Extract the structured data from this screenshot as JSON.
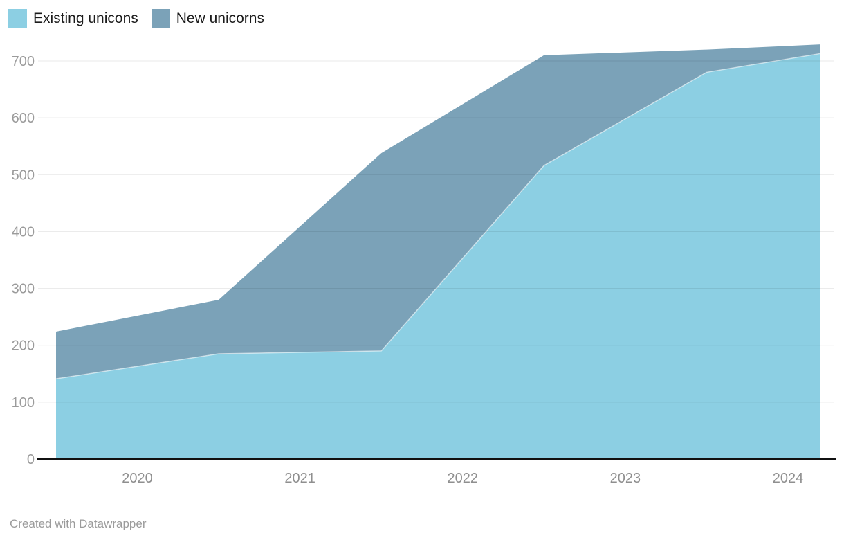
{
  "legend": {
    "items": [
      {
        "label": "Existing unicons",
        "color": "#8CCFE3"
      },
      {
        "label": "New unicorns",
        "color": "#7BA2B8"
      }
    ]
  },
  "footer": {
    "credit": "Created with Datawrapper"
  },
  "colors": {
    "existing_area": "#8CCFE3",
    "new_area": "#7BA2B8",
    "gridline": "rgba(0,0,0,0.09)",
    "baseline": "#111111",
    "area_separator": "rgba(255,255,255,0.55)",
    "y_tick_text": "#9b9b9b",
    "x_tick_text": "#8f8f8f"
  },
  "chart_data": {
    "type": "area",
    "stacked": true,
    "title": "",
    "xlabel": "",
    "ylabel": "",
    "x": [
      2019.5,
      2020.5,
      2021.5,
      2022.5,
      2023.5,
      2024.2
    ],
    "series": [
      {
        "name": "Existing unicons",
        "color": "#8CCFE3",
        "values": [
          141,
          185,
          190,
          516,
          680,
          713
        ]
      },
      {
        "name": "New unicorns",
        "color": "#7BA2B8",
        "values": [
          83,
          95,
          348,
          194,
          40,
          16
        ]
      }
    ],
    "stacked_totals": [
      224,
      280,
      538,
      710,
      720,
      729
    ],
    "x_ticks": [
      2020,
      2021,
      2022,
      2023,
      2024
    ],
    "y_ticks": [
      0,
      100,
      200,
      300,
      400,
      500,
      600,
      700
    ],
    "xlim": [
      2019.5,
      2024.2
    ],
    "ylim": [
      0,
      700
    ],
    "grid": true,
    "gridlines_above_areas": true,
    "legend_position": "top-left"
  }
}
